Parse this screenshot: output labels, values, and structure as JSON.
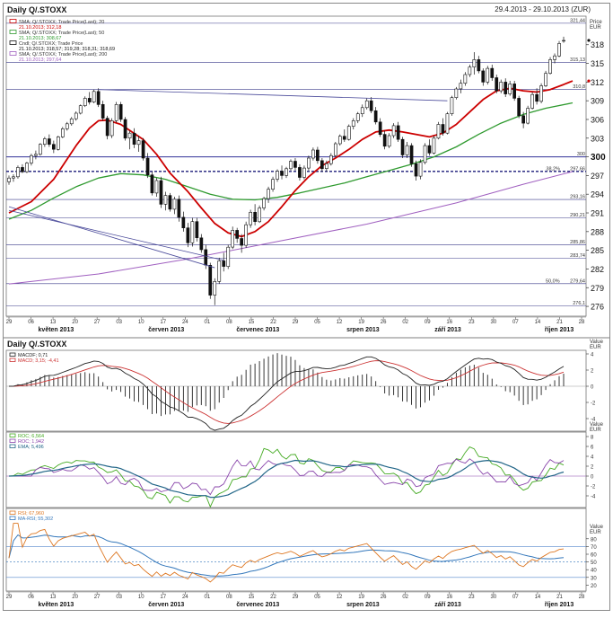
{
  "header": {
    "title": "Daily Q/.STOXX",
    "range": "29.4.2013 - 29.10.2013 (ZUR)"
  },
  "main": {
    "legend": [
      {
        "line1": "SMA; Q/.STOXX; Trade Price(Last); 20",
        "line2": "21.10.2013; 312,18",
        "color": "#cc0000"
      },
      {
        "line1": "SMA; Q/.STOXX; Trade Price(Last); 50",
        "line2": "21.10.2013; 308,67",
        "color": "#2f9a2f"
      },
      {
        "line1": "Cndl; Q/.STOXX; Trade Price",
        "line2": "21.10.2013; 318,57; 319,28; 318,31; 318,69",
        "color": "#111111"
      },
      {
        "line1": "SMA; Q/.STOXX; Trade Price(Last); 200",
        "line2": "21.10.2013; 297,64",
        "color": "#a060c0"
      }
    ],
    "axis_label": "Price\nEUR",
    "y_ticks": [
      "318",
      "315",
      "312",
      "309",
      "306",
      "303",
      "300",
      "297",
      "294",
      "291",
      "288",
      "285",
      "282",
      "279",
      "276"
    ],
    "h_levels": [
      {
        "value": 321.44,
        "label": "321,44"
      },
      {
        "value": 315.13,
        "label": "315,13"
      },
      {
        "value": 310.8,
        "label": "310,8"
      },
      {
        "value": 297.66,
        "label": "297,66"
      },
      {
        "value": 300,
        "label": "300"
      },
      {
        "value": 293.16,
        "label": "293,16"
      },
      {
        "value": 290.21,
        "label": "290,21"
      },
      {
        "value": 285.86,
        "label": "285,86"
      },
      {
        "value": 283.74,
        "label": "283,74"
      },
      {
        "value": 279.64,
        "label": "279,64"
      },
      {
        "value": 276.1,
        "label": "276,1"
      }
    ],
    "fib_label": "50,0%",
    "fib_value_label": "279,64",
    "fib_dotted_label": "38,2%"
  },
  "macd": {
    "legend": [
      {
        "text": "MACDF; 0,71",
        "color": "#222222"
      },
      {
        "text": "MACD; 3,15; -4,41",
        "color": "#cc3333"
      }
    ],
    "axis_label": "Value\nEUR",
    "y_ticks": [
      "4",
      "2",
      "0",
      "-2",
      "-4"
    ]
  },
  "roc": {
    "legend": [
      {
        "text": "ROC; 6,564",
        "color": "#44aa22"
      },
      {
        "text": "ROC; 1,942",
        "color": "#8844aa"
      },
      {
        "text": "EMA; 5,496",
        "color": "#226688"
      }
    ],
    "axis_label": "Value\nEUR",
    "y_ticks": [
      "8",
      "6",
      "4",
      "2",
      "0",
      "-2",
      "-4"
    ]
  },
  "rsi": {
    "legend": [
      {
        "text": "RSI; 67,960",
        "color": "#dd7722"
      },
      {
        "text": "MA-RSI; 55,302",
        "color": "#3377bb"
      }
    ],
    "axis_label": "Value\nEUR",
    "y_ticks": [
      "80",
      "70",
      "60",
      "50",
      "40",
      "30",
      "20"
    ]
  },
  "x_axis": {
    "day_ticks": [
      "29",
      "06",
      "13",
      "20",
      "27",
      "03",
      "10",
      "17",
      "24",
      "01",
      "08",
      "15",
      "22",
      "29",
      "05",
      "12",
      "19",
      "26",
      "02",
      "09",
      "16",
      "23",
      "30",
      "07",
      "14",
      "21",
      "28"
    ],
    "months": [
      {
        "label": "květen 2013",
        "tick": 1
      },
      {
        "label": "červen 2013",
        "tick": 6
      },
      {
        "label": "červenec 2013",
        "tick": 10
      },
      {
        "label": "srpen 2013",
        "tick": 15
      },
      {
        "label": "září 2013",
        "tick": 19
      },
      {
        "label": "říjen 2013",
        "tick": 24
      }
    ]
  },
  "chart_data": {
    "type": "candlestick",
    "title": "Daily Q/.STOXX",
    "subtitle": "29.4.2013 - 29.10.2013 (ZUR)",
    "ylim": [
      275,
      322
    ],
    "candles": [
      [
        296,
        297,
        295.5,
        296.6
      ],
      [
        296.6,
        297.2,
        296,
        296.8
      ],
      [
        296.8,
        298.6,
        296.5,
        298.3
      ],
      [
        298.3,
        298.8,
        297.4,
        297.6
      ],
      [
        297.6,
        299.2,
        297.4,
        299
      ],
      [
        299,
        300.5,
        298.6,
        300.2
      ],
      [
        300.2,
        301,
        299.6,
        300.4
      ],
      [
        300.4,
        302.2,
        300.2,
        302
      ],
      [
        302,
        303.2,
        301.6,
        302.9
      ],
      [
        302.9,
        303.6,
        301.6,
        302
      ],
      [
        302,
        302.6,
        300.6,
        301.2
      ],
      [
        301.2,
        303.4,
        301,
        303.2
      ],
      [
        303.2,
        304.8,
        303,
        304.5
      ],
      [
        304.5,
        305.6,
        304.2,
        305.3
      ],
      [
        305.3,
        306.4,
        305,
        306.1
      ],
      [
        306.1,
        307.3,
        305.8,
        307
      ],
      [
        307,
        308.4,
        306.8,
        308.2
      ],
      [
        308.2,
        309.7,
        308,
        309.4
      ],
      [
        309.4,
        310.4,
        308.4,
        308.8
      ],
      [
        308.8,
        310.8,
        308.6,
        310.5
      ],
      [
        310.5,
        311,
        308,
        308.4
      ],
      [
        308.4,
        309,
        305.8,
        306.2
      ],
      [
        306.2,
        306.6,
        302.8,
        303.4
      ],
      [
        303.4,
        306.2,
        303,
        305.8
      ],
      [
        305.8,
        308.8,
        305.5,
        308.4
      ],
      [
        308.4,
        308.8,
        305.6,
        306
      ],
      [
        306,
        306.4,
        302.6,
        303
      ],
      [
        303,
        304.2,
        301.2,
        303.8
      ],
      [
        303.8,
        304.6,
        301.4,
        302
      ],
      [
        302,
        303.4,
        300.8,
        302.6
      ],
      [
        302.6,
        303,
        299.4,
        299.8
      ],
      [
        299.8,
        300.6,
        296.6,
        297.1
      ],
      [
        297.1,
        297.6,
        293.8,
        294.2
      ],
      [
        294.2,
        296.6,
        293.6,
        296.2
      ],
      [
        296.2,
        296.8,
        291.8,
        292.4
      ],
      [
        292.4,
        294.4,
        291.4,
        293.8
      ],
      [
        293.8,
        294.2,
        291.2,
        291.6
      ],
      [
        291.6,
        293.6,
        290.8,
        293.2
      ],
      [
        293.2,
        293.8,
        289.6,
        290.3
      ],
      [
        290.3,
        291.2,
        288,
        288.6
      ],
      [
        288.6,
        289.4,
        285.5,
        286.2
      ],
      [
        286.2,
        290.2,
        285.6,
        289.6
      ],
      [
        289.6,
        290.2,
        286.4,
        287
      ],
      [
        287,
        287.6,
        284.6,
        285.1
      ],
      [
        285.1,
        285.9,
        282,
        282.6
      ],
      [
        282.6,
        283,
        277.2,
        277.8
      ],
      [
        277.8,
        280.5,
        276.2,
        280
      ],
      [
        280,
        283.8,
        279.6,
        283.3
      ],
      [
        283.3,
        284.6,
        281.6,
        282.4
      ],
      [
        282.4,
        285.9,
        282,
        285.5
      ],
      [
        285.5,
        288.8,
        285.2,
        288.2
      ],
      [
        288.2,
        288.6,
        286.2,
        286.9
      ],
      [
        286.9,
        287.6,
        284.6,
        285.8
      ],
      [
        285.8,
        289.6,
        285.4,
        289.1
      ],
      [
        289.1,
        291.5,
        288.6,
        291.1
      ],
      [
        291.1,
        292.4,
        289,
        289.6
      ],
      [
        289.6,
        292.2,
        289.4,
        291.8
      ],
      [
        291.8,
        293.6,
        291.4,
        293.3
      ],
      [
        293.3,
        295.2,
        292.6,
        294.8
      ],
      [
        294.8,
        296.8,
        294.4,
        296.4
      ],
      [
        296.4,
        298,
        296,
        297.7
      ],
      [
        297.7,
        298.6,
        296.4,
        297
      ],
      [
        297,
        298.4,
        296.6,
        298.1
      ],
      [
        298.1,
        299.6,
        297.8,
        299.3
      ],
      [
        299.3,
        299.8,
        297.8,
        298.3
      ],
      [
        298.3,
        298.8,
        296.2,
        296.7
      ],
      [
        296.7,
        298.6,
        296.4,
        298.2
      ],
      [
        298.2,
        300.2,
        297.8,
        299.8
      ],
      [
        299.8,
        301.5,
        299.4,
        301.1
      ],
      [
        301.1,
        301.6,
        298.9,
        299.4
      ],
      [
        299.4,
        299.8,
        297.6,
        298.1
      ],
      [
        298.1,
        299.4,
        297.6,
        298.9
      ],
      [
        298.9,
        300.6,
        298.6,
        300.2
      ],
      [
        300.2,
        302.4,
        300,
        302.1
      ],
      [
        302.1,
        303.6,
        301.8,
        303.3
      ],
      [
        303.3,
        304.4,
        302.4,
        302.8
      ],
      [
        302.8,
        305.2,
        302.6,
        304.9
      ],
      [
        304.9,
        306.2,
        304.4,
        305.8
      ],
      [
        305.8,
        307.2,
        305.4,
        306.9
      ],
      [
        306.9,
        308.4,
        306.4,
        307.9
      ],
      [
        307.9,
        309.4,
        307.6,
        309
      ],
      [
        309,
        309.6,
        307,
        307.4
      ],
      [
        307.4,
        308,
        305.2,
        305.6
      ],
      [
        305.6,
        306.2,
        303.2,
        303.6
      ],
      [
        303.6,
        304.2,
        301.2,
        301.7
      ],
      [
        301.7,
        303.8,
        301.4,
        303.4
      ],
      [
        303.4,
        305.4,
        303,
        305
      ],
      [
        305,
        305.6,
        302.4,
        302.8
      ],
      [
        302.8,
        303.2,
        299.8,
        300.3
      ],
      [
        300.3,
        302.4,
        299.8,
        301.8
      ],
      [
        301.8,
        302.2,
        298.4,
        298.9
      ],
      [
        298.9,
        299.4,
        296.2,
        296.9
      ],
      [
        296.9,
        299.6,
        296.4,
        299.1
      ],
      [
        299.1,
        302.2,
        298.8,
        301.8
      ],
      [
        301.8,
        302.8,
        300.2,
        300.6
      ],
      [
        300.6,
        303.4,
        300.4,
        303
      ],
      [
        303,
        305.6,
        302.8,
        305.2
      ],
      [
        305.2,
        306.2,
        303.4,
        303.8
      ],
      [
        303.8,
        307.2,
        303.6,
        306.9
      ],
      [
        306.9,
        309.8,
        306.6,
        309.5
      ],
      [
        309.5,
        311.2,
        309.2,
        310.9
      ],
      [
        310.9,
        312.4,
        310.2,
        311.8
      ],
      [
        311.8,
        313.6,
        311.4,
        313.2
      ],
      [
        313.2,
        314.8,
        312.8,
        314.4
      ],
      [
        314.4,
        316.8,
        313.2,
        315.6
      ],
      [
        315.6,
        316.2,
        313.4,
        313.8
      ],
      [
        313.8,
        314.2,
        311.4,
        312
      ],
      [
        312,
        314.6,
        311.6,
        314.2
      ],
      [
        314.2,
        314.8,
        312.2,
        312.7
      ],
      [
        312.7,
        313.2,
        310.2,
        310.6
      ],
      [
        310.6,
        312.4,
        310.2,
        312
      ],
      [
        312,
        312.6,
        309.6,
        310.1
      ],
      [
        310.1,
        312.2,
        309.8,
        311.7
      ],
      [
        311.7,
        312.2,
        309,
        309.4
      ],
      [
        309.4,
        309.8,
        306.2,
        306.6
      ],
      [
        306.6,
        307.2,
        304.6,
        305.4
      ],
      [
        305.4,
        308.2,
        305.2,
        307.8
      ],
      [
        307.8,
        310.4,
        307.6,
        310
      ],
      [
        310,
        311,
        308.4,
        308.9
      ],
      [
        308.9,
        311.8,
        308.6,
        311.4
      ],
      [
        311.4,
        313.8,
        311.2,
        313.4
      ],
      [
        313.4,
        316,
        313.2,
        315.6
      ],
      [
        315.6,
        316.6,
        315,
        316.2
      ],
      [
        316.2,
        318.6,
        316,
        318.2
      ],
      [
        318.57,
        319.28,
        318.31,
        318.69
      ]
    ],
    "sma20": [
      [
        0,
        291
      ],
      [
        5,
        292.8
      ],
      [
        10,
        296.4
      ],
      [
        15,
        301.8
      ],
      [
        18,
        304.6
      ],
      [
        20,
        305.8
      ],
      [
        22,
        305.9
      ],
      [
        25,
        305.2
      ],
      [
        30,
        302.8
      ],
      [
        33,
        300.4
      ],
      [
        36,
        297.4
      ],
      [
        40,
        294.4
      ],
      [
        43,
        291.8
      ],
      [
        46,
        289.3
      ],
      [
        49,
        287.8
      ],
      [
        52,
        287.2
      ],
      [
        55,
        288
      ],
      [
        58,
        289.6
      ],
      [
        61,
        292
      ],
      [
        64,
        294.6
      ],
      [
        67,
        296.8
      ],
      [
        70,
        298.6
      ],
      [
        73,
        299.8
      ],
      [
        76,
        301.2
      ],
      [
        79,
        302.8
      ],
      [
        82,
        304
      ],
      [
        85,
        304.3
      ],
      [
        88,
        304
      ],
      [
        91,
        303.6
      ],
      [
        94,
        303.2
      ],
      [
        97,
        303.8
      ],
      [
        100,
        305.2
      ],
      [
        103,
        307.2
      ],
      [
        106,
        309.2
      ],
      [
        109,
        310.6
      ],
      [
        112,
        311
      ],
      [
        115,
        310.6
      ],
      [
        118,
        310.4
      ],
      [
        121,
        310.8
      ],
      [
        124,
        311.6
      ],
      [
        126,
        312.18
      ]
    ],
    "sma50": [
      [
        0,
        290
      ],
      [
        5,
        291.4
      ],
      [
        10,
        293.4
      ],
      [
        15,
        295.2
      ],
      [
        20,
        296.6
      ],
      [
        25,
        297.3
      ],
      [
        30,
        297.1
      ],
      [
        35,
        296.4
      ],
      [
        40,
        295.2
      ],
      [
        45,
        294
      ],
      [
        50,
        293.2
      ],
      [
        55,
        293.1
      ],
      [
        60,
        293.5
      ],
      [
        65,
        294.2
      ],
      [
        70,
        295
      ],
      [
        75,
        295.8
      ],
      [
        80,
        296.8
      ],
      [
        85,
        297.8
      ],
      [
        90,
        298.8
      ],
      [
        95,
        300
      ],
      [
        100,
        301.6
      ],
      [
        105,
        303.6
      ],
      [
        110,
        305.4
      ],
      [
        115,
        306.8
      ],
      [
        120,
        307.8
      ],
      [
        126,
        308.67
      ]
    ],
    "sma200": [
      [
        0,
        279.6
      ],
      [
        20,
        281.2
      ],
      [
        40,
        283.6
      ],
      [
        60,
        286.4
      ],
      [
        80,
        289.2
      ],
      [
        100,
        292.6
      ],
      [
        115,
        295.6
      ],
      [
        126,
        297.64
      ]
    ],
    "trendline_upper": [
      [
        0,
        291.4
      ],
      [
        48,
        283.4
      ]
    ],
    "trendline_lower": [
      [
        0,
        292
      ],
      [
        46,
        282.2
      ]
    ],
    "trendline_top": [
      [
        20,
        310.8
      ],
      [
        98,
        309
      ]
    ]
  }
}
